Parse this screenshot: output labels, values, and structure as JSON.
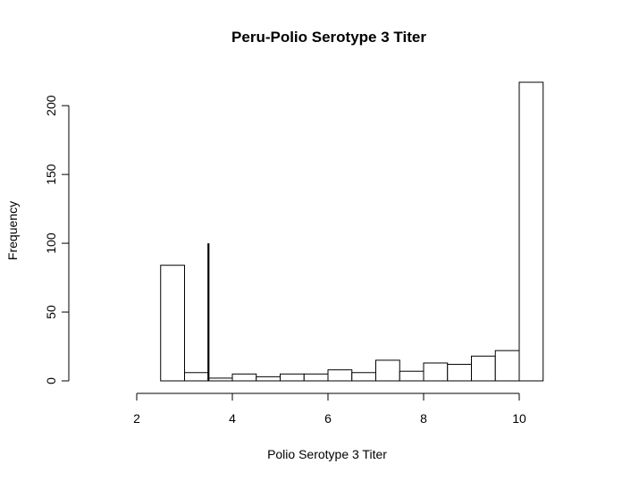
{
  "chart_data": {
    "type": "bar",
    "title": "Peru-Polio Serotype 3 Titer",
    "xlabel": "Polio Serotype 3 Titer",
    "ylabel": "Frequency",
    "bins": [
      {
        "x0": 2.5,
        "x1": 3.0,
        "count": 84
      },
      {
        "x0": 3.0,
        "x1": 3.5,
        "count": 6
      },
      {
        "x0": 3.5,
        "x1": 4.0,
        "count": 2
      },
      {
        "x0": 4.0,
        "x1": 4.5,
        "count": 5
      },
      {
        "x0": 4.5,
        "x1": 5.0,
        "count": 3
      },
      {
        "x0": 5.0,
        "x1": 5.5,
        "count": 5
      },
      {
        "x0": 5.5,
        "x1": 6.0,
        "count": 5
      },
      {
        "x0": 6.0,
        "x1": 6.5,
        "count": 8
      },
      {
        "x0": 6.5,
        "x1": 7.0,
        "count": 6
      },
      {
        "x0": 7.0,
        "x1": 7.5,
        "count": 15
      },
      {
        "x0": 7.5,
        "x1": 8.0,
        "count": 7
      },
      {
        "x0": 8.0,
        "x1": 8.5,
        "count": 13
      },
      {
        "x0": 8.5,
        "x1": 9.0,
        "count": 12
      },
      {
        "x0": 9.0,
        "x1": 9.5,
        "count": 18
      },
      {
        "x0": 9.5,
        "x1": 10.0,
        "count": 22
      },
      {
        "x0": 10.0,
        "x1": 10.5,
        "count": 217
      }
    ],
    "reference_line": {
      "x": 3.5,
      "y0": 0,
      "y1": 100
    },
    "xlim": [
      1.1,
      10.5
    ],
    "ylim": [
      0,
      217
    ],
    "x_ticks": [
      2,
      4,
      6,
      8,
      10
    ],
    "x_tick_labels": [
      "2",
      "4",
      "6",
      "8",
      "10"
    ],
    "y_ticks": [
      0,
      50,
      100,
      150,
      200
    ],
    "y_tick_labels": [
      "0",
      "50",
      "100",
      "150",
      "200"
    ],
    "grid": false,
    "legend": "none"
  }
}
